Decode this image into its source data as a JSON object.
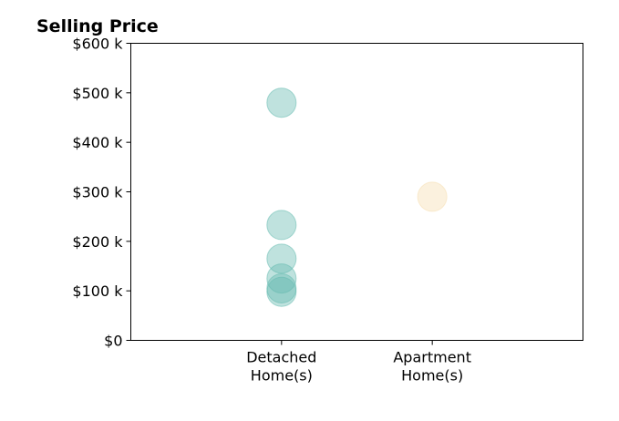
{
  "chart_data": {
    "type": "scatter",
    "title": "Selling Price",
    "xlabel": "",
    "ylabel": "",
    "categories": [
      [
        "Detached",
        "Home(s)"
      ],
      [
        "Apartment",
        "Home(s)"
      ]
    ],
    "xlim": [
      -1,
      2
    ],
    "ylim": [
      0,
      600000
    ],
    "yticks": [
      0,
      100000,
      200000,
      300000,
      400000,
      500000,
      600000
    ],
    "ytick_labels": [
      "$0",
      "$100 k",
      "$200 k",
      "$300 k",
      "$400 k",
      "$500 k",
      "$600 k"
    ],
    "grid": false,
    "series": [
      {
        "category_index": 0,
        "color": "#66bbb0",
        "values": [
          480000,
          233000,
          165000,
          125000,
          105000,
          98000
        ]
      },
      {
        "category_index": 1,
        "color": "#f5deb0",
        "values": [
          290000
        ]
      }
    ]
  }
}
